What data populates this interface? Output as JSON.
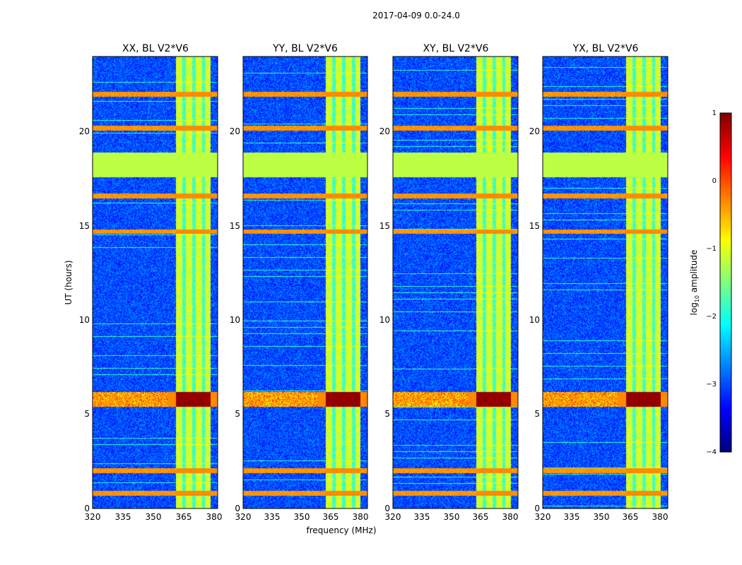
{
  "figure": {
    "suptitle": "2017-04-09 0.0-24.0"
  },
  "chart_data": {
    "type": "heatmap",
    "suptitle": "2017-04-09 0.0-24.0",
    "xlabel": "frequency (MHz)",
    "ylabel": "UT (hours)",
    "xlim": [
      320,
      381.5
    ],
    "ylim": [
      0,
      24
    ],
    "x_ticks": [
      "320",
      "335",
      "350",
      "365",
      "380"
    ],
    "y_ticks": [
      "0",
      "5",
      "10",
      "15",
      "20"
    ],
    "panels": [
      {
        "name": "xx",
        "title": "XX, BL V2*V6"
      },
      {
        "name": "yy",
        "title": "YY, BL V2*V6"
      },
      {
        "name": "xy",
        "title": "XY, BL V2*V6"
      },
      {
        "name": "yx",
        "title": "YX, BL V2*V6"
      }
    ],
    "colorbar": {
      "label_prefix": "log",
      "label_sub": "10",
      "label_suffix": " amplitude",
      "range": [
        -4,
        1
      ],
      "ticks": [
        "1",
        "0",
        "−1",
        "−2",
        "−3",
        "−4"
      ],
      "colormap": "jet"
    },
    "features": {
      "data_gap_hours": [
        17.6,
        18.9
      ],
      "gap_value": -1.2,
      "bright_band_mhz": [
        361,
        378
      ],
      "strong_rfi_hours": [
        5.4,
        6.2
      ],
      "narrow_rfi_hours": [
        0.8,
        2.0,
        14.7,
        16.6,
        20.2,
        22.0
      ]
    }
  }
}
